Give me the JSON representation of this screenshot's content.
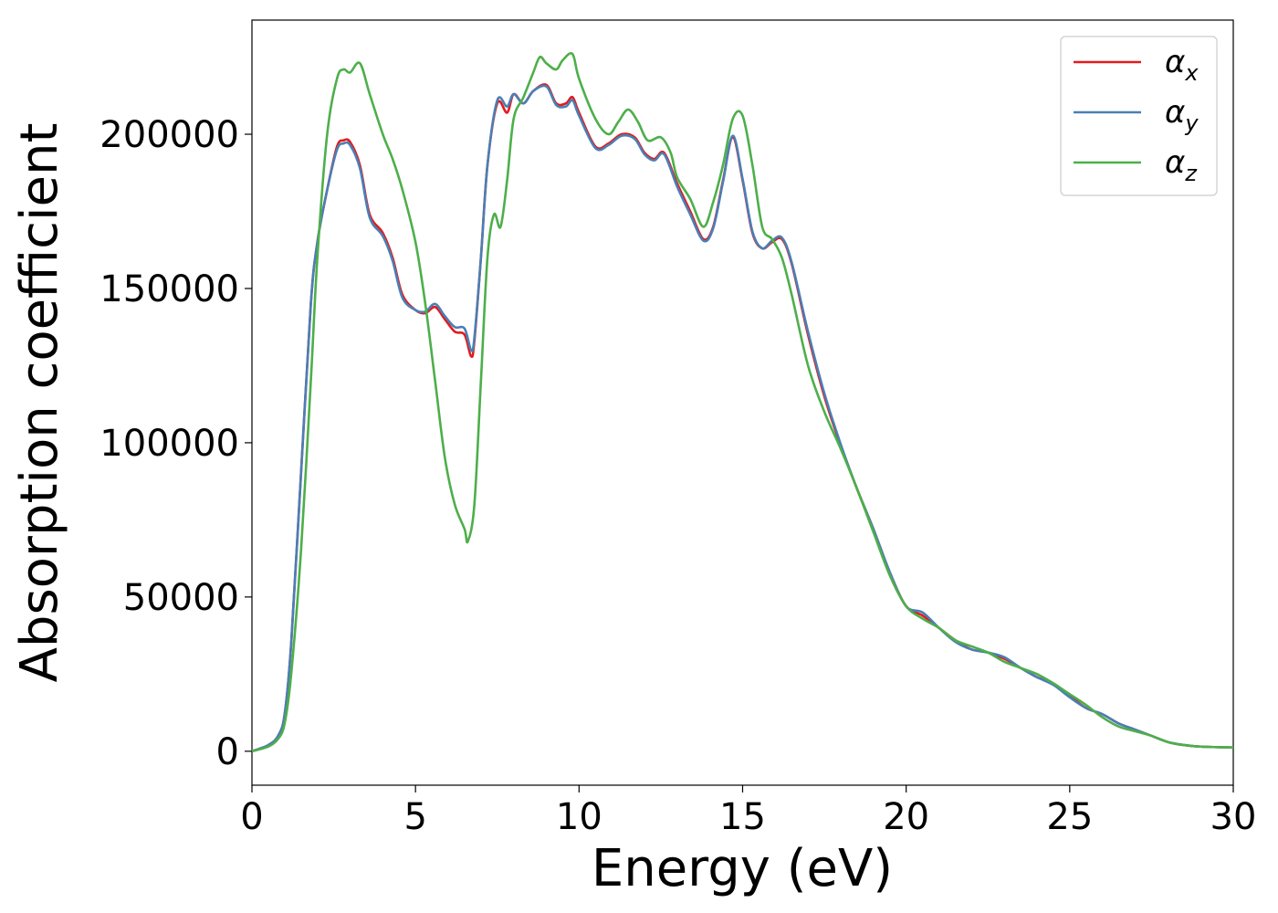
{
  "chart_data": {
    "type": "line",
    "xlabel": "Energy (eV)",
    "ylabel": "Absorption coefficient",
    "xlim": [
      0,
      30
    ],
    "ylim": [
      -11000,
      237000
    ],
    "xticks": [
      0,
      5,
      10,
      15,
      20,
      25,
      30
    ],
    "xtick_labels": [
      "0",
      "5",
      "10",
      "15",
      "20",
      "25",
      "30"
    ],
    "yticks": [
      0,
      50000,
      100000,
      150000,
      200000
    ],
    "ytick_labels": [
      "0",
      "50000",
      "100000",
      "150000",
      "200000"
    ],
    "grid": false,
    "legend_position": "top-right",
    "series": [
      {
        "name": "α",
        "subscript": "x",
        "color": "#e41a1c",
        "x": [
          0,
          0.5,
          0.8,
          1.0,
          1.2,
          1.5,
          1.8,
          2.0,
          2.3,
          2.6,
          2.8,
          3.0,
          3.3,
          3.6,
          4.0,
          4.3,
          4.6,
          5.0,
          5.3,
          5.6,
          5.9,
          6.2,
          6.5,
          6.7,
          6.8,
          7.0,
          7.2,
          7.5,
          7.8,
          8.0,
          8.3,
          8.6,
          9.0,
          9.3,
          9.6,
          9.8,
          10.0,
          10.5,
          10.9,
          11.3,
          11.7,
          12.0,
          12.3,
          12.6,
          13.0,
          13.4,
          13.8,
          14.1,
          14.4,
          14.7,
          15.0,
          15.3,
          15.6,
          15.9,
          16.2,
          16.5,
          17.0,
          17.5,
          18.0,
          18.5,
          19.0,
          19.5,
          20.0,
          20.5,
          21.0,
          21.5,
          22.0,
          22.5,
          23.0,
          23.5,
          24.0,
          24.5,
          25.0,
          25.5,
          26.0,
          26.5,
          27.0,
          27.5,
          28.0,
          28.5,
          29.0,
          30.0
        ],
        "y": [
          0,
          2000,
          5000,
          12000,
          35000,
          90000,
          145000,
          165000,
          182000,
          196000,
          198000,
          197500,
          190000,
          174000,
          168000,
          160000,
          148000,
          143000,
          142000,
          144000,
          140000,
          136000,
          135000,
          128000,
          133000,
          160000,
          190000,
          210000,
          207000,
          213000,
          210000,
          214000,
          216000,
          210000,
          210000,
          212000,
          207000,
          196000,
          197000,
          200000,
          199000,
          194000,
          192000,
          194000,
          184000,
          175000,
          166000,
          170000,
          185000,
          199000,
          185000,
          168000,
          163000,
          165000,
          166000,
          158000,
          135000,
          115000,
          99000,
          85000,
          72000,
          58000,
          47000,
          44000,
          40000,
          36000,
          33000,
          32000,
          30000,
          27000,
          24000,
          22000,
          18000,
          14000,
          12000,
          9000,
          7000,
          5000,
          3000,
          2000,
          1500,
          1200
        ]
      },
      {
        "name": "α",
        "subscript": "y",
        "color": "#4a7fb5",
        "x": [
          0,
          0.5,
          0.8,
          1.0,
          1.2,
          1.5,
          1.8,
          2.0,
          2.3,
          2.6,
          2.8,
          3.0,
          3.3,
          3.6,
          4.0,
          4.3,
          4.6,
          5.0,
          5.3,
          5.6,
          5.9,
          6.2,
          6.5,
          6.7,
          6.8,
          7.0,
          7.2,
          7.5,
          7.8,
          8.0,
          8.3,
          8.6,
          9.0,
          9.3,
          9.6,
          9.8,
          10.0,
          10.5,
          10.9,
          11.3,
          11.7,
          12.0,
          12.3,
          12.6,
          13.0,
          13.4,
          13.8,
          14.1,
          14.4,
          14.7,
          15.0,
          15.3,
          15.6,
          15.9,
          16.2,
          16.5,
          17.0,
          17.5,
          18.0,
          18.5,
          19.0,
          19.5,
          20.0,
          20.5,
          21.0,
          21.5,
          22.0,
          22.5,
          23.0,
          23.5,
          24.0,
          24.5,
          25.0,
          25.5,
          26.0,
          26.5,
          27.0,
          27.5,
          28.0,
          28.5,
          29.0,
          30.0
        ],
        "y": [
          0,
          2000,
          5000,
          12000,
          35000,
          90000,
          145000,
          165000,
          182000,
          195000,
          197000,
          196500,
          189000,
          173000,
          167000,
          159000,
          147000,
          143000,
          142500,
          145000,
          141000,
          137500,
          137000,
          130000,
          134000,
          160000,
          190000,
          211000,
          209000,
          213000,
          210000,
          214000,
          215500,
          209500,
          209000,
          211000,
          206000,
          195500,
          196500,
          199500,
          198500,
          193500,
          191500,
          193500,
          183000,
          174000,
          165500,
          169500,
          184500,
          199500,
          185500,
          168500,
          163000,
          165500,
          166500,
          158500,
          136000,
          116000,
          99500,
          85000,
          72000,
          58000,
          47000,
          45000,
          40000,
          35500,
          33000,
          32000,
          30500,
          27000,
          24000,
          21500,
          17500,
          14000,
          12000,
          9000,
          7000,
          5000,
          3000,
          2000,
          1500,
          1200
        ]
      },
      {
        "name": "α",
        "subscript": "z",
        "color": "#4daf4a",
        "x": [
          0,
          0.5,
          0.8,
          1.0,
          1.2,
          1.5,
          1.8,
          2.0,
          2.3,
          2.6,
          2.8,
          3.0,
          3.3,
          3.6,
          4.0,
          4.3,
          4.6,
          5.0,
          5.3,
          5.6,
          5.9,
          6.2,
          6.5,
          6.6,
          6.8,
          7.0,
          7.2,
          7.4,
          7.6,
          7.8,
          8.0,
          8.3,
          8.6,
          8.8,
          9.0,
          9.3,
          9.5,
          9.8,
          10.0,
          10.5,
          10.9,
          11.2,
          11.5,
          11.8,
          12.1,
          12.5,
          12.8,
          13.0,
          13.4,
          13.8,
          14.1,
          14.4,
          14.7,
          15.0,
          15.3,
          15.6,
          15.9,
          16.2,
          16.5,
          17.0,
          17.5,
          18.0,
          18.5,
          19.0,
          19.5,
          20.0,
          20.5,
          21.0,
          21.5,
          22.0,
          22.5,
          23.0,
          23.5,
          24.0,
          24.5,
          25.0,
          25.5,
          26.0,
          26.5,
          27.0,
          27.5,
          28.0,
          28.5,
          29.0,
          30.0
        ],
        "y": [
          0,
          1500,
          4000,
          9000,
          25000,
          65000,
          120000,
          160000,
          200000,
          218000,
          221000,
          220000,
          223000,
          213000,
          200000,
          192000,
          182000,
          165000,
          145000,
          120000,
          95000,
          80000,
          72000,
          68000,
          80000,
          120000,
          160000,
          174000,
          170000,
          185000,
          205000,
          212000,
          220000,
          225000,
          223000,
          221000,
          224000,
          226000,
          218000,
          205000,
          200000,
          204000,
          208000,
          204000,
          198000,
          199000,
          194000,
          186000,
          179000,
          170000,
          178000,
          190000,
          205000,
          206000,
          190000,
          170000,
          166000,
          160000,
          148000,
          125000,
          110000,
          98000,
          85000,
          71000,
          57000,
          47000,
          43000,
          40000,
          36000,
          34000,
          32000,
          29000,
          27000,
          25000,
          22000,
          18500,
          15000,
          11000,
          8000,
          6500,
          5000,
          3000,
          2000,
          1500,
          1200
        ]
      }
    ]
  }
}
